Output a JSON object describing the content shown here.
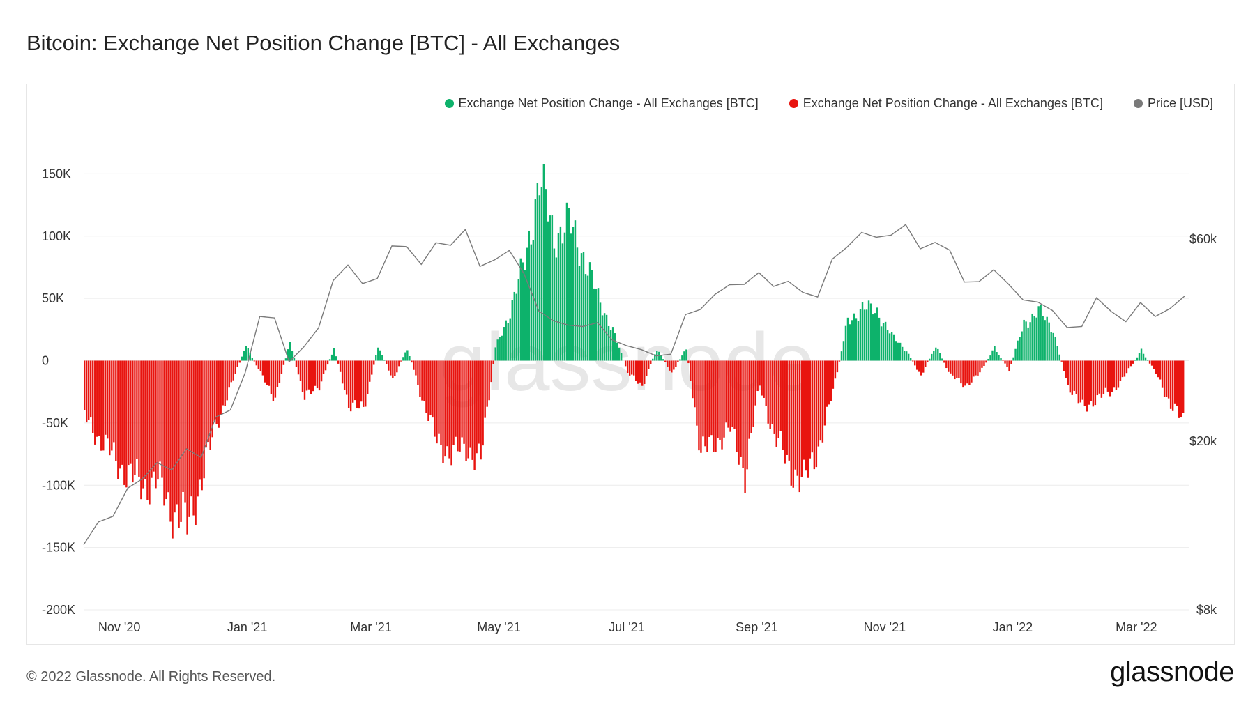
{
  "header": {
    "title": "Bitcoin: Exchange Net Position Change [BTC] - All Exchanges"
  },
  "legend": [
    {
      "label": "Exchange Net Position Change - All Exchanges [BTC]",
      "color": "#0db26b"
    },
    {
      "label": "Exchange Net Position Change - All Exchanges [BTC]",
      "color": "#e8140f"
    },
    {
      "label": "Price [USD]",
      "color": "#7a7a7a"
    }
  ],
  "footer": {
    "copyright": "© 2022 Glassnode. All Rights Reserved.",
    "brand": "glassnode"
  },
  "watermark": "glassnode",
  "chart_data": {
    "type": "bar",
    "title": "Bitcoin: Exchange Net Position Change [BTC] - All Exchanges",
    "x_range": [
      "2020-10-15",
      "2022-03-26"
    ],
    "x_ticks": [
      {
        "date": "2020-11-01",
        "label": "Nov '20"
      },
      {
        "date": "2021-01-01",
        "label": "Jan '21"
      },
      {
        "date": "2021-03-01",
        "label": "Mar '21"
      },
      {
        "date": "2021-05-01",
        "label": "May '21"
      },
      {
        "date": "2021-07-01",
        "label": "Jul '21"
      },
      {
        "date": "2021-09-01",
        "label": "Sep '21"
      },
      {
        "date": "2021-11-01",
        "label": "Nov '21"
      },
      {
        "date": "2022-01-01",
        "label": "Jan '22"
      },
      {
        "date": "2022-03-01",
        "label": "Mar '22"
      }
    ],
    "y_left": {
      "range": [
        -200000,
        200000
      ],
      "ticks": [
        150000,
        100000,
        50000,
        0,
        -50000,
        -100000,
        -150000,
        -200000
      ],
      "tick_labels": [
        "150K",
        "100K",
        "50K",
        "0",
        "-50K",
        "-100K",
        "-150K",
        "-200K"
      ]
    },
    "y_right": {
      "scale": "log",
      "range": [
        8000,
        120000
      ],
      "ticks": [
        60000,
        20000,
        8000
      ],
      "tick_labels": [
        "$60k",
        "$20k",
        "$8k"
      ]
    },
    "grid": true,
    "legend_position": "top-right",
    "positive_color": "#0db26b",
    "negative_color": "#e8140f",
    "price_color": "#7a7a7a",
    "series": [
      {
        "name": "Exchange Net Position Change - All Exchanges [BTC]",
        "axis": "left",
        "points": [
          [
            "2020-10-15",
            -45000
          ],
          [
            "2020-10-22",
            -62000
          ],
          [
            "2020-10-29",
            -78000
          ],
          [
            "2020-11-05",
            -92000
          ],
          [
            "2020-11-12",
            -100000
          ],
          [
            "2020-11-19",
            -97000
          ],
          [
            "2020-11-26",
            -120000
          ],
          [
            "2020-12-03",
            -132000
          ],
          [
            "2020-12-10",
            -95000
          ],
          [
            "2020-12-17",
            -50000
          ],
          [
            "2020-12-24",
            -20000
          ],
          [
            "2020-12-31",
            12000
          ],
          [
            "2021-01-07",
            -10000
          ],
          [
            "2021-01-14",
            -30000
          ],
          [
            "2021-01-21",
            15000
          ],
          [
            "2021-01-28",
            -30000
          ],
          [
            "2021-02-04",
            -20000
          ],
          [
            "2021-02-11",
            10000
          ],
          [
            "2021-02-18",
            -35000
          ],
          [
            "2021-02-25",
            -40000
          ],
          [
            "2021-03-04",
            12000
          ],
          [
            "2021-03-11",
            -15000
          ],
          [
            "2021-03-18",
            10000
          ],
          [
            "2021-03-25",
            -30000
          ],
          [
            "2021-04-01",
            -65000
          ],
          [
            "2021-04-08",
            -75000
          ],
          [
            "2021-04-15",
            -70000
          ],
          [
            "2021-04-22",
            -80000
          ],
          [
            "2021-04-29",
            10000
          ],
          [
            "2021-05-06",
            40000
          ],
          [
            "2021-05-13",
            80000
          ],
          [
            "2021-05-20",
            145000
          ],
          [
            "2021-05-27",
            100000
          ],
          [
            "2021-06-03",
            110000
          ],
          [
            "2021-06-10",
            85000
          ],
          [
            "2021-06-17",
            50000
          ],
          [
            "2021-06-24",
            25000
          ],
          [
            "2021-07-01",
            -10000
          ],
          [
            "2021-07-08",
            -20000
          ],
          [
            "2021-07-15",
            10000
          ],
          [
            "2021-07-22",
            -10000
          ],
          [
            "2021-07-29",
            10000
          ],
          [
            "2021-08-05",
            -75000
          ],
          [
            "2021-08-12",
            -65000
          ],
          [
            "2021-08-19",
            -55000
          ],
          [
            "2021-08-26",
            -90000
          ],
          [
            "2021-09-02",
            -20000
          ],
          [
            "2021-09-09",
            -60000
          ],
          [
            "2021-09-16",
            -85000
          ],
          [
            "2021-09-23",
            -98000
          ],
          [
            "2021-09-30",
            -70000
          ],
          [
            "2021-10-07",
            -25000
          ],
          [
            "2021-10-14",
            32000
          ],
          [
            "2021-10-21",
            42000
          ],
          [
            "2021-10-28",
            40000
          ],
          [
            "2021-11-04",
            20000
          ],
          [
            "2021-11-11",
            8000
          ],
          [
            "2021-11-18",
            -12000
          ],
          [
            "2021-11-25",
            12000
          ],
          [
            "2021-12-02",
            -12000
          ],
          [
            "2021-12-09",
            -20000
          ],
          [
            "2021-12-16",
            -10000
          ],
          [
            "2021-12-23",
            10000
          ],
          [
            "2021-12-30",
            -8000
          ],
          [
            "2022-01-06",
            30000
          ],
          [
            "2022-01-13",
            40000
          ],
          [
            "2022-01-20",
            25000
          ],
          [
            "2022-01-27",
            -20000
          ],
          [
            "2022-02-03",
            -38000
          ],
          [
            "2022-02-10",
            -30000
          ],
          [
            "2022-02-17",
            -25000
          ],
          [
            "2022-02-24",
            -10000
          ],
          [
            "2022-03-03",
            8000
          ],
          [
            "2022-03-10",
            -10000
          ],
          [
            "2022-03-17",
            -35000
          ],
          [
            "2022-03-24",
            -52000
          ]
        ]
      },
      {
        "name": "Price [USD]",
        "axis": "right",
        "points": [
          [
            "2020-10-15",
            11400
          ],
          [
            "2020-10-22",
            12900
          ],
          [
            "2020-10-29",
            13300
          ],
          [
            "2020-11-05",
            15500
          ],
          [
            "2020-11-12",
            16300
          ],
          [
            "2020-11-19",
            17800
          ],
          [
            "2020-11-26",
            17100
          ],
          [
            "2020-12-03",
            19200
          ],
          [
            "2020-12-10",
            18300
          ],
          [
            "2020-12-17",
            22800
          ],
          [
            "2020-12-24",
            23700
          ],
          [
            "2020-12-31",
            29000
          ],
          [
            "2021-01-07",
            39400
          ],
          [
            "2021-01-14",
            39100
          ],
          [
            "2021-01-21",
            30800
          ],
          [
            "2021-01-28",
            33400
          ],
          [
            "2021-02-04",
            37000
          ],
          [
            "2021-02-11",
            47900
          ],
          [
            "2021-02-18",
            52100
          ],
          [
            "2021-02-25",
            47100
          ],
          [
            "2021-03-04",
            48400
          ],
          [
            "2021-03-11",
            57800
          ],
          [
            "2021-03-18",
            57600
          ],
          [
            "2021-03-25",
            52300
          ],
          [
            "2021-04-01",
            58800
          ],
          [
            "2021-04-08",
            58000
          ],
          [
            "2021-04-15",
            63200
          ],
          [
            "2021-04-22",
            51700
          ],
          [
            "2021-04-29",
            53600
          ],
          [
            "2021-05-06",
            56400
          ],
          [
            "2021-05-13",
            49700
          ],
          [
            "2021-05-20",
            40600
          ],
          [
            "2021-05-27",
            38500
          ],
          [
            "2021-06-03",
            37600
          ],
          [
            "2021-06-10",
            37300
          ],
          [
            "2021-06-17",
            38100
          ],
          [
            "2021-06-24",
            34700
          ],
          [
            "2021-07-01",
            33600
          ],
          [
            "2021-07-08",
            32900
          ],
          [
            "2021-07-15",
            31800
          ],
          [
            "2021-07-22",
            32100
          ],
          [
            "2021-07-29",
            39800
          ],
          [
            "2021-08-05",
            40900
          ],
          [
            "2021-08-12",
            44400
          ],
          [
            "2021-08-19",
            46800
          ],
          [
            "2021-08-26",
            46900
          ],
          [
            "2021-09-02",
            50000
          ],
          [
            "2021-09-09",
            46400
          ],
          [
            "2021-09-16",
            47700
          ],
          [
            "2021-09-23",
            44900
          ],
          [
            "2021-09-30",
            43800
          ],
          [
            "2021-10-07",
            53800
          ],
          [
            "2021-10-14",
            57400
          ],
          [
            "2021-10-21",
            62200
          ],
          [
            "2021-10-28",
            60600
          ],
          [
            "2021-11-04",
            61300
          ],
          [
            "2021-11-11",
            64900
          ],
          [
            "2021-11-18",
            56900
          ],
          [
            "2021-11-25",
            58900
          ],
          [
            "2021-12-02",
            56500
          ],
          [
            "2021-12-09",
            47500
          ],
          [
            "2021-12-16",
            47600
          ],
          [
            "2021-12-23",
            50800
          ],
          [
            "2021-12-30",
            47000
          ],
          [
            "2022-01-06",
            43100
          ],
          [
            "2022-01-13",
            42600
          ],
          [
            "2022-01-20",
            40700
          ],
          [
            "2022-01-27",
            37100
          ],
          [
            "2022-02-03",
            37300
          ],
          [
            "2022-02-10",
            43600
          ],
          [
            "2022-02-17",
            40500
          ],
          [
            "2022-02-24",
            38300
          ],
          [
            "2022-03-03",
            42500
          ],
          [
            "2022-03-10",
            39400
          ],
          [
            "2022-03-17",
            41100
          ],
          [
            "2022-03-24",
            44000
          ]
        ]
      }
    ]
  }
}
